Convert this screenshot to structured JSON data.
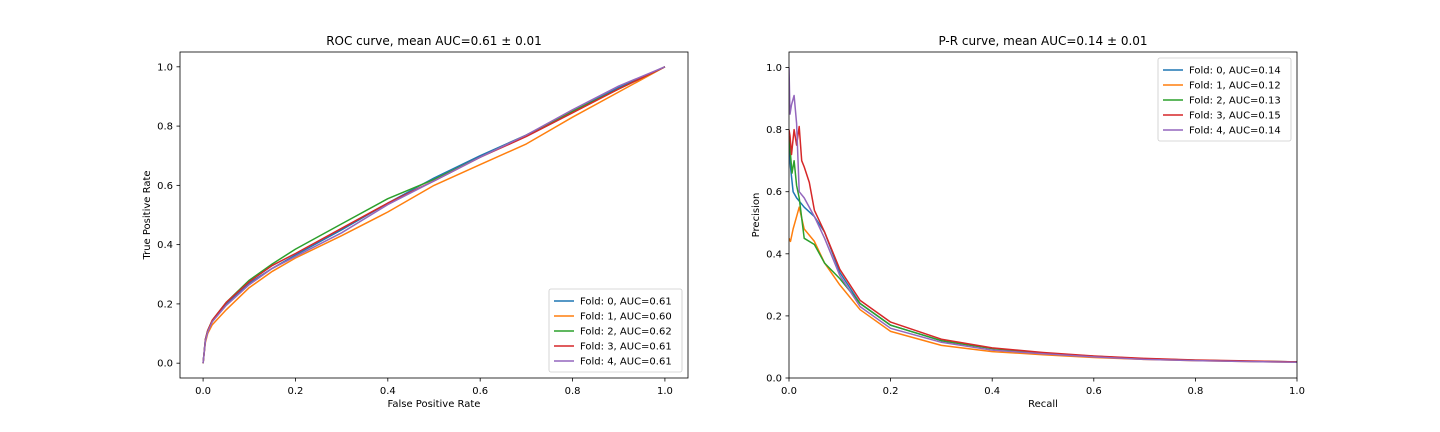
{
  "chart_data": [
    {
      "type": "line",
      "title": "ROC curve, mean AUC=0.61 ± 0.01",
      "xlabel": "False Positive Rate",
      "ylabel": "True Positive Rate",
      "xlim": [
        -0.05,
        1.05
      ],
      "ylim": [
        -0.05,
        1.05
      ],
      "xticks": [
        0.0,
        0.2,
        0.4,
        0.6,
        0.8,
        1.0
      ],
      "xtick_labels": [
        "0.0",
        "0.2",
        "0.4",
        "0.6",
        "0.8",
        "1.0"
      ],
      "yticks": [
        0.0,
        0.2,
        0.4,
        0.6,
        0.8,
        1.0
      ],
      "ytick_labels": [
        "0.0",
        "0.2",
        "0.4",
        "0.6",
        "0.8",
        "1.0"
      ],
      "grid": false,
      "legend_position": "lower-right",
      "series": [
        {
          "name": "Fold: 0, AUC=0.61",
          "color": "#1f77b4",
          "x": [
            0,
            0.005,
            0.01,
            0.02,
            0.05,
            0.1,
            0.15,
            0.2,
            0.3,
            0.4,
            0.5,
            0.6,
            0.7,
            0.8,
            0.9,
            1.0
          ],
          "y": [
            0,
            0.08,
            0.11,
            0.14,
            0.2,
            0.27,
            0.32,
            0.365,
            0.45,
            0.54,
            0.625,
            0.7,
            0.77,
            0.85,
            0.93,
            1.0
          ]
        },
        {
          "name": "Fold: 1, AUC=0.60",
          "color": "#ff7f0e",
          "x": [
            0,
            0.005,
            0.01,
            0.02,
            0.05,
            0.1,
            0.15,
            0.2,
            0.3,
            0.4,
            0.5,
            0.6,
            0.7,
            0.8,
            0.9,
            1.0
          ],
          "y": [
            0,
            0.07,
            0.1,
            0.13,
            0.18,
            0.255,
            0.31,
            0.355,
            0.43,
            0.51,
            0.6,
            0.67,
            0.74,
            0.83,
            0.915,
            1.0
          ]
        },
        {
          "name": "Fold: 2, AUC=0.62",
          "color": "#2ca02c",
          "x": [
            0,
            0.005,
            0.01,
            0.02,
            0.05,
            0.1,
            0.15,
            0.2,
            0.3,
            0.4,
            0.5,
            0.6,
            0.7,
            0.8,
            0.9,
            1.0
          ],
          "y": [
            0,
            0.08,
            0.11,
            0.145,
            0.205,
            0.28,
            0.335,
            0.385,
            0.47,
            0.555,
            0.62,
            0.695,
            0.77,
            0.85,
            0.925,
            1.0
          ]
        },
        {
          "name": "Fold: 3, AUC=0.61",
          "color": "#d62728",
          "x": [
            0,
            0.005,
            0.01,
            0.02,
            0.05,
            0.1,
            0.15,
            0.2,
            0.3,
            0.4,
            0.5,
            0.6,
            0.7,
            0.8,
            0.9,
            1.0
          ],
          "y": [
            0,
            0.08,
            0.11,
            0.145,
            0.205,
            0.275,
            0.33,
            0.37,
            0.455,
            0.54,
            0.615,
            0.695,
            0.765,
            0.845,
            0.925,
            1.0
          ]
        },
        {
          "name": "Fold: 4, AUC=0.61",
          "color": "#9467bd",
          "x": [
            0,
            0.005,
            0.01,
            0.02,
            0.05,
            0.1,
            0.15,
            0.2,
            0.3,
            0.4,
            0.5,
            0.6,
            0.7,
            0.8,
            0.9,
            1.0
          ],
          "y": [
            0,
            0.075,
            0.105,
            0.14,
            0.195,
            0.265,
            0.32,
            0.36,
            0.44,
            0.535,
            0.615,
            0.695,
            0.77,
            0.855,
            0.935,
            1.0
          ]
        }
      ]
    },
    {
      "type": "line",
      "title": "P-R curve, mean AUC=0.14 ± 0.01",
      "xlabel": "Recall",
      "ylabel": "Precision",
      "xlim": [
        0,
        1
      ],
      "ylim": [
        0,
        1.05
      ],
      "xticks": [
        0.0,
        0.2,
        0.4,
        0.6,
        0.8,
        1.0
      ],
      "xtick_labels": [
        "0.0",
        "0.2",
        "0.4",
        "0.6",
        "0.8",
        "1.0"
      ],
      "yticks": [
        0.0,
        0.2,
        0.4,
        0.6,
        0.8,
        1.0
      ],
      "ytick_labels": [
        "0.0",
        "0.2",
        "0.4",
        "0.6",
        "0.8",
        "1.0"
      ],
      "grid": false,
      "legend_position": "upper-right",
      "series": [
        {
          "name": "Fold: 0, AUC=0.14",
          "color": "#1f77b4",
          "x": [
            0,
            0.003,
            0.008,
            0.015,
            0.03,
            0.05,
            0.07,
            0.1,
            0.14,
            0.2,
            0.3,
            0.4,
            0.5,
            0.6,
            0.7,
            0.8,
            0.9,
            1.0
          ],
          "y": [
            0.75,
            0.68,
            0.6,
            0.58,
            0.55,
            0.52,
            0.47,
            0.34,
            0.24,
            0.17,
            0.12,
            0.095,
            0.08,
            0.07,
            0.062,
            0.057,
            0.054,
            0.052
          ]
        },
        {
          "name": "Fold: 1, AUC=0.12",
          "color": "#ff7f0e",
          "x": [
            0,
            0.003,
            0.008,
            0.015,
            0.02,
            0.03,
            0.05,
            0.07,
            0.1,
            0.14,
            0.2,
            0.3,
            0.4,
            0.5,
            0.6,
            0.7,
            0.8,
            0.9,
            1.0
          ],
          "y": [
            0.45,
            0.44,
            0.48,
            0.52,
            0.55,
            0.48,
            0.44,
            0.37,
            0.3,
            0.22,
            0.15,
            0.105,
            0.085,
            0.075,
            0.066,
            0.06,
            0.056,
            0.053,
            0.051
          ]
        },
        {
          "name": "Fold: 2, AUC=0.13",
          "color": "#2ca02c",
          "x": [
            0,
            0.003,
            0.006,
            0.01,
            0.015,
            0.02,
            0.03,
            0.05,
            0.07,
            0.1,
            0.14,
            0.2,
            0.3,
            0.4,
            0.5,
            0.6,
            0.7,
            0.8,
            0.9,
            1.0
          ],
          "y": [
            0.78,
            0.72,
            0.66,
            0.7,
            0.62,
            0.58,
            0.45,
            0.43,
            0.37,
            0.32,
            0.24,
            0.17,
            0.12,
            0.095,
            0.08,
            0.07,
            0.062,
            0.057,
            0.054,
            0.052
          ]
        },
        {
          "name": "Fold: 3, AUC=0.15",
          "color": "#d62728",
          "x": [
            0,
            0.002,
            0.005,
            0.01,
            0.015,
            0.02,
            0.025,
            0.03,
            0.04,
            0.05,
            0.07,
            0.1,
            0.14,
            0.2,
            0.3,
            0.4,
            0.5,
            0.6,
            0.7,
            0.8,
            0.9,
            1.0
          ],
          "y": [
            0.8,
            0.78,
            0.72,
            0.8,
            0.75,
            0.81,
            0.7,
            0.68,
            0.63,
            0.54,
            0.47,
            0.35,
            0.25,
            0.18,
            0.125,
            0.097,
            0.082,
            0.071,
            0.063,
            0.058,
            0.055,
            0.052
          ]
        },
        {
          "name": "Fold: 4, AUC=0.14",
          "color": "#9467bd",
          "x": [
            0,
            0.002,
            0.005,
            0.01,
            0.015,
            0.02,
            0.03,
            0.05,
            0.07,
            0.1,
            0.14,
            0.2,
            0.3,
            0.4,
            0.5,
            0.6,
            0.7,
            0.8,
            0.9,
            1.0
          ],
          "y": [
            1.0,
            0.85,
            0.88,
            0.91,
            0.82,
            0.6,
            0.58,
            0.52,
            0.45,
            0.33,
            0.23,
            0.16,
            0.115,
            0.09,
            0.078,
            0.068,
            0.06,
            0.056,
            0.053,
            0.051
          ]
        }
      ]
    }
  ]
}
